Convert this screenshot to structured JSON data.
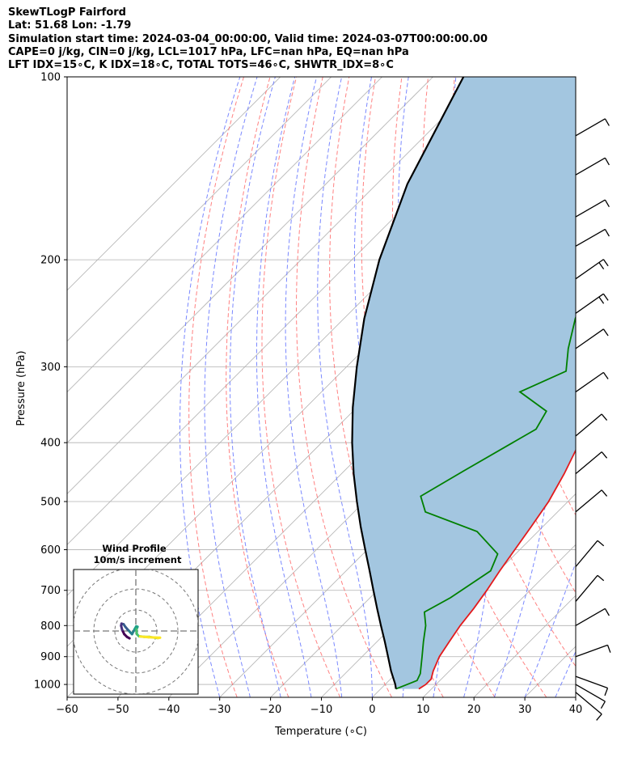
{
  "header": {
    "title": "SkewTLogP Fairford",
    "location": "Lat: 51.68   Lon: -1.79",
    "times": "Simulation start time: 2024-03-04_00:00:00, Valid time: 2024-03-07T00:00:00.00",
    "indices1": "CAPE=0 j/kg, CIN=0 j/kg, LCL=1017 hPa, LFC=nan hPa, EQ=nan hPa",
    "indices2": "LFT IDX=15∘C, K IDX=18∘C, TOTAL TOTS=46∘C, SHWTR_IDX=8∘C"
  },
  "colors": {
    "temperature": "#e31a1c",
    "dewpoint": "#008000",
    "parcel": "#000000",
    "cape_fill": "#a3c6e0",
    "dry_adiabat": "#ff6b6b",
    "moist_adiabat": "#6b7bff",
    "isotherm": "#b0b0b0",
    "grid": "#b0b0b0"
  },
  "chart_data": {
    "type": "line",
    "title": "",
    "xlabel": "Temperature (∘C)",
    "ylabel": "Pressure (hPa)",
    "xlim": [
      -60,
      40
    ],
    "ylim": [
      1050,
      100
    ],
    "x_ticks": [
      "−60",
      "−50",
      "−40",
      "−30",
      "−20",
      "−10",
      "0",
      "10",
      "20",
      "30",
      "40"
    ],
    "y_ticks": [
      "100",
      "200",
      "300",
      "400",
      "500",
      "600",
      "700",
      "800",
      "900",
      "1000"
    ],
    "y_tick_values": [
      100,
      200,
      300,
      400,
      500,
      600,
      700,
      800,
      900,
      1000
    ],
    "y_scale": "log",
    "skew_note": "isotherms skewed 45deg",
    "series": [
      {
        "name": "Temperature",
        "points": [
          [
            1017,
            7.5
          ],
          [
            1000,
            8.0
          ],
          [
            980,
            8.0
          ],
          [
            950,
            6.8
          ],
          [
            900,
            5.2
          ],
          [
            850,
            4.2
          ],
          [
            800,
            3.2
          ],
          [
            750,
            2.5
          ],
          [
            700,
            1.5
          ],
          [
            650,
            0.2
          ],
          [
            600,
            -1.0
          ],
          [
            550,
            -2.3
          ],
          [
            500,
            -3.8
          ],
          [
            450,
            -6.2
          ],
          [
            400,
            -9.3
          ],
          [
            350,
            -14.2
          ],
          [
            300,
            -19.4
          ],
          [
            260,
            -23.2
          ],
          [
            230,
            -26.6
          ],
          [
            200,
            -31.3
          ],
          [
            180,
            -35.0
          ],
          [
            160,
            -38.8
          ],
          [
            140,
            -42.5
          ],
          [
            120,
            -48.0
          ],
          [
            100,
            -52.0
          ]
        ]
      },
      {
        "name": "Dewpoint",
        "points": [
          [
            1017,
            3.0
          ],
          [
            985,
            5.5
          ],
          [
            960,
            4.8
          ],
          [
            900,
            1.8
          ],
          [
            850,
            -0.9
          ],
          [
            800,
            -3.6
          ],
          [
            760,
            -6.5
          ],
          [
            720,
            -4.2
          ],
          [
            650,
            -1.6
          ],
          [
            610,
            -3.5
          ],
          [
            560,
            -12.0
          ],
          [
            520,
            -26.0
          ],
          [
            490,
            -30.0
          ],
          [
            445,
            -26.5
          ],
          [
            380,
            -20.5
          ],
          [
            355,
            -22.0
          ],
          [
            330,
            -31.0
          ],
          [
            305,
            -26.0
          ],
          [
            280,
            -30.0
          ],
          [
            250,
            -34.5
          ],
          [
            200,
            -41.8
          ],
          [
            180,
            -45.0
          ],
          [
            165,
            -48.0
          ],
          [
            145,
            -55.5
          ],
          [
            120,
            -60.0
          ],
          [
            100,
            -70.0
          ]
        ]
      },
      {
        "name": "Parcel",
        "points": [
          [
            1017,
            3.0
          ],
          [
            1000,
            2.0
          ],
          [
            950,
            -1.5
          ],
          [
            900,
            -4.9
          ],
          [
            850,
            -8.5
          ],
          [
            800,
            -12.4
          ],
          [
            750,
            -16.5
          ],
          [
            700,
            -20.8
          ],
          [
            650,
            -25.4
          ],
          [
            600,
            -30.4
          ],
          [
            550,
            -35.8
          ],
          [
            500,
            -41.5
          ],
          [
            450,
            -47.6
          ],
          [
            400,
            -54.0
          ],
          [
            350,
            -60.8
          ],
          [
            300,
            -68.0
          ],
          [
            250,
            -76.0
          ],
          [
            200,
            -84.6
          ],
          [
            150,
            -94.0
          ],
          [
            100,
            -104.0
          ]
        ]
      }
    ],
    "wind_barbs_label": "wind barbs (right edge)",
    "inset": {
      "title": "Wind Profile",
      "subtitle": "10m/s increment",
      "rings_ms": [
        10,
        20,
        30
      ],
      "hodograph_uv": [
        [
          -3,
          -3.5
        ],
        [
          -4.2,
          -2.8
        ],
        [
          -5.5,
          -1.5
        ],
        [
          -6.5,
          0.5
        ],
        [
          -7,
          2.5
        ],
        [
          -6.8,
          3.5
        ],
        [
          -5.8,
          3.2
        ],
        [
          -5,
          2
        ],
        [
          -4,
          0.8
        ],
        [
          -3.2,
          0
        ],
        [
          -2.5,
          -0.8
        ],
        [
          -1.8,
          -1.5
        ],
        [
          -0.5,
          1
        ],
        [
          0.2,
          2.2
        ],
        [
          0.8,
          2
        ],
        [
          0.3,
          0.8
        ],
        [
          0.5,
          -1.5
        ],
        [
          1.5,
          -2.5
        ],
        [
          4,
          -2.8
        ],
        [
          6.5,
          -2.8
        ],
        [
          9,
          -3.2
        ],
        [
          10.5,
          -3.4
        ],
        [
          11.5,
          -3.2
        ],
        [
          6,
          -3
        ],
        [
          2,
          -2.6
        ]
      ]
    }
  }
}
